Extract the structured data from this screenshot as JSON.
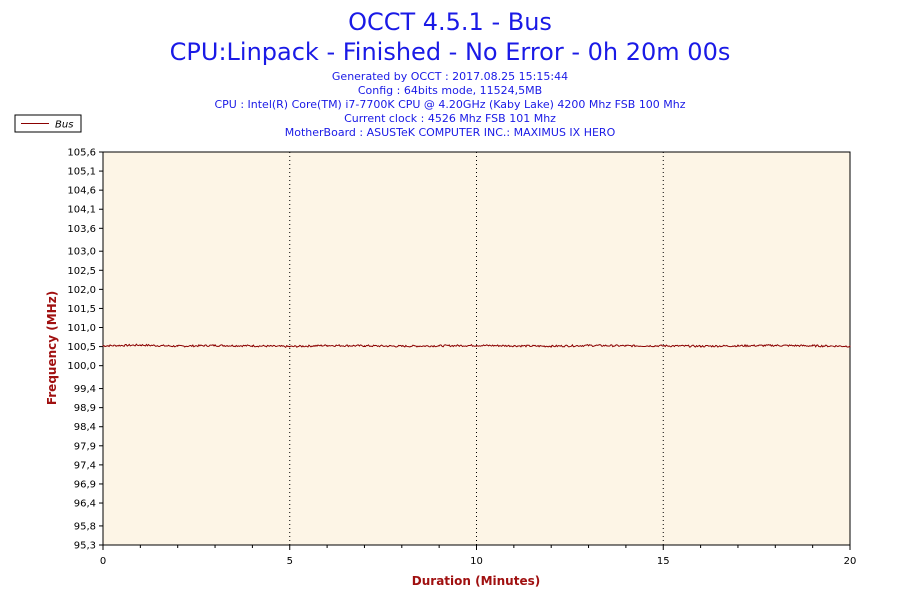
{
  "chart_data": {
    "type": "line",
    "title": "OCCT 4.5.1 - Bus",
    "subtitle": "CPU:Linpack - Finished - No Error - 0h 20m 00s",
    "info_lines": [
      "Generated by OCCT : 2017.08.25 15:15:44",
      "Config : 64bits mode, 11524,5MB",
      "CPU : Intel(R) Core(TM) i7-7700K CPU @ 4.20GHz (Kaby Lake) 4200 Mhz FSB 100 Mhz",
      "Current clock : 4526 Mhz FSB 101 Mhz",
      "MotherBoard : ASUSTeK COMPUTER INC.: MAXIMUS IX HERO"
    ],
    "xlabel": "Duration (Minutes)",
    "ylabel": "Frequency (MHz)",
    "xlim": [
      0,
      20
    ],
    "ylim": [
      95.3,
      105.6
    ],
    "x_ticks": [
      0,
      5,
      10,
      15,
      20
    ],
    "x_tick_labels": [
      "0",
      "5",
      "10",
      "15",
      "20"
    ],
    "y_ticks": [
      95.3,
      95.8,
      96.4,
      96.9,
      97.4,
      97.9,
      98.4,
      98.9,
      99.4,
      100.0,
      100.5,
      101.0,
      101.5,
      102.0,
      102.5,
      103.0,
      103.6,
      104.1,
      104.6,
      105.1,
      105.6
    ],
    "y_tick_labels": [
      "95,3",
      "95,8",
      "96,4",
      "96,9",
      "97,4",
      "97,9",
      "98,4",
      "98,9",
      "99,4",
      "100,0",
      "100,5",
      "101,0",
      "101,5",
      "102,0",
      "102,5",
      "103,0",
      "103,6",
      "104,1",
      "104,6",
      "105,1",
      "105,6"
    ],
    "grid": "vertical dotted at major x ticks",
    "legend_position": "top-left",
    "series": [
      {
        "name": "Bus",
        "color": "#8b0000",
        "x": [
          0,
          1,
          2,
          3,
          4,
          5,
          6,
          7,
          8,
          9,
          10,
          11,
          12,
          13,
          14,
          15,
          16,
          17,
          18,
          19,
          20
        ],
        "values": [
          100.52,
          100.54,
          100.51,
          100.53,
          100.52,
          100.5,
          100.53,
          100.52,
          100.51,
          100.52,
          100.53,
          100.52,
          100.51,
          100.53,
          100.52,
          100.52,
          100.51,
          100.52,
          100.53,
          100.52,
          100.51
        ]
      }
    ],
    "colors": {
      "plot_background": "#fdf5e6",
      "title": "#1a1ae6",
      "axis_title": "#a01010"
    }
  }
}
